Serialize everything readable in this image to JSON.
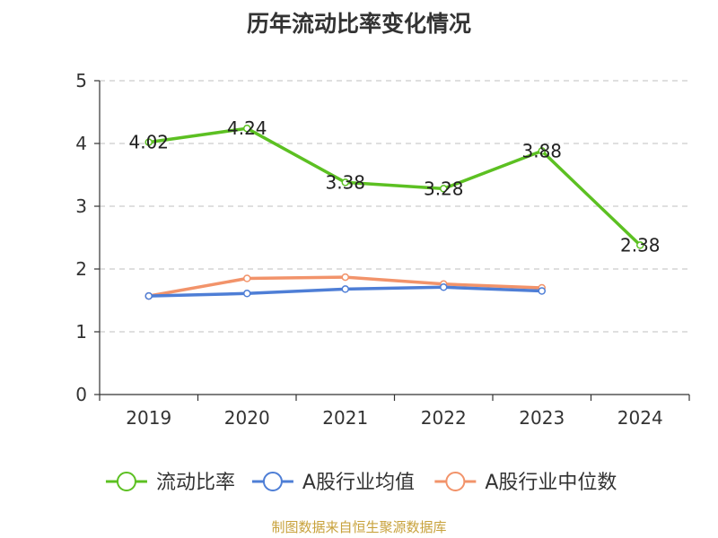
{
  "chart_data": {
    "type": "line",
    "title": "历年流动比率变化情况",
    "categories": [
      "2019",
      "2020",
      "2021",
      "2022",
      "2023",
      "2024"
    ],
    "ylim": [
      0,
      5
    ],
    "yticks": [
      0,
      1,
      2,
      3,
      4,
      5
    ],
    "grid": true,
    "legend_position": "bottom",
    "series": [
      {
        "name": "流动比率",
        "color": "#5cc022",
        "values": [
          4.02,
          4.24,
          3.38,
          3.28,
          3.88,
          2.38
        ],
        "labels": true
      },
      {
        "name": "A股行业均值",
        "color": "#4e7ed6",
        "values": [
          1.57,
          1.61,
          1.68,
          1.71,
          1.65,
          null
        ],
        "labels": false
      },
      {
        "name": "A股行业中位数",
        "color": "#f2936a",
        "values": [
          1.57,
          1.85,
          1.87,
          1.76,
          1.7,
          null
        ],
        "labels": false
      }
    ]
  },
  "source_text": "制图数据来自恒生聚源数据库"
}
